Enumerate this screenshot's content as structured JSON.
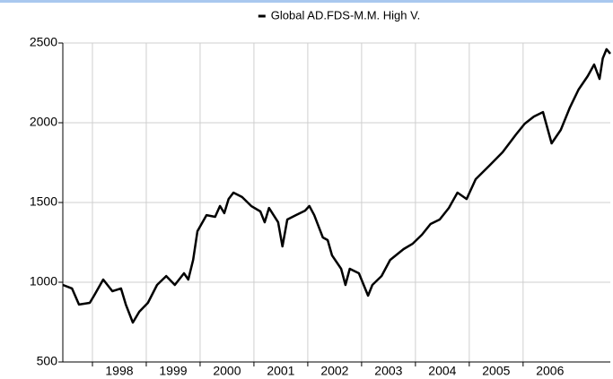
{
  "chart_data": {
    "type": "line",
    "x": [
      1997.45,
      1997.62,
      1997.75,
      1997.95,
      1998.03,
      1998.2,
      1998.37,
      1998.53,
      1998.62,
      1998.75,
      1998.87,
      1999.03,
      1999.2,
      1999.37,
      1999.53,
      1999.7,
      1999.78,
      1999.87,
      1999.95,
      2000.12,
      2000.28,
      2000.37,
      2000.45,
      2000.53,
      2000.62,
      2000.78,
      2000.95,
      2001.12,
      2001.2,
      2001.28,
      2001.45,
      2001.53,
      2001.62,
      2001.78,
      2001.95,
      2002.03,
      2002.12,
      2002.28,
      2002.37,
      2002.45,
      2002.62,
      2002.7,
      2002.78,
      2002.95,
      2003.12,
      2003.2,
      2003.37,
      2003.53,
      2003.78,
      2003.95,
      2004.12,
      2004.28,
      2004.45,
      2004.62,
      2004.78,
      2004.95,
      2005.12,
      2005.37,
      2005.62,
      2005.87,
      2006.03,
      2006.2,
      2006.37,
      2006.53,
      2006.7,
      2006.87,
      2007.03,
      2007.2,
      2007.32,
      2007.42,
      2007.48,
      2007.55,
      2007.62
    ],
    "series": [
      {
        "name": "Global AD.FDS-M.M. High V.",
        "color": "#000000",
        "values": [
          983,
          961,
          860,
          871,
          916,
          1017,
          944,
          961,
          860,
          747,
          815,
          871,
          983,
          1039,
          983,
          1056,
          1017,
          1140,
          1320,
          1421,
          1410,
          1478,
          1433,
          1522,
          1562,
          1534,
          1478,
          1444,
          1376,
          1466,
          1376,
          1225,
          1393,
          1421,
          1449,
          1478,
          1421,
          1281,
          1264,
          1169,
          1084,
          983,
          1084,
          1056,
          916,
          983,
          1039,
          1140,
          1208,
          1242,
          1298,
          1365,
          1393,
          1466,
          1562,
          1522,
          1646,
          1730,
          1815,
          1927,
          1994,
          2039,
          2067,
          1871,
          1955,
          2096,
          2208,
          2292,
          2365,
          2275,
          2404,
          2461,
          2433
        ]
      }
    ],
    "xlim": [
      1997.45,
      2007.62
    ],
    "xticks": [
      1998,
      1999,
      2000,
      2001,
      2002,
      2003,
      2004,
      2005,
      2006
    ],
    "ylim": [
      500,
      2500
    ],
    "yticks": [
      500,
      1000,
      1500,
      2000,
      2500
    ],
    "grid": true,
    "legend": "top"
  }
}
